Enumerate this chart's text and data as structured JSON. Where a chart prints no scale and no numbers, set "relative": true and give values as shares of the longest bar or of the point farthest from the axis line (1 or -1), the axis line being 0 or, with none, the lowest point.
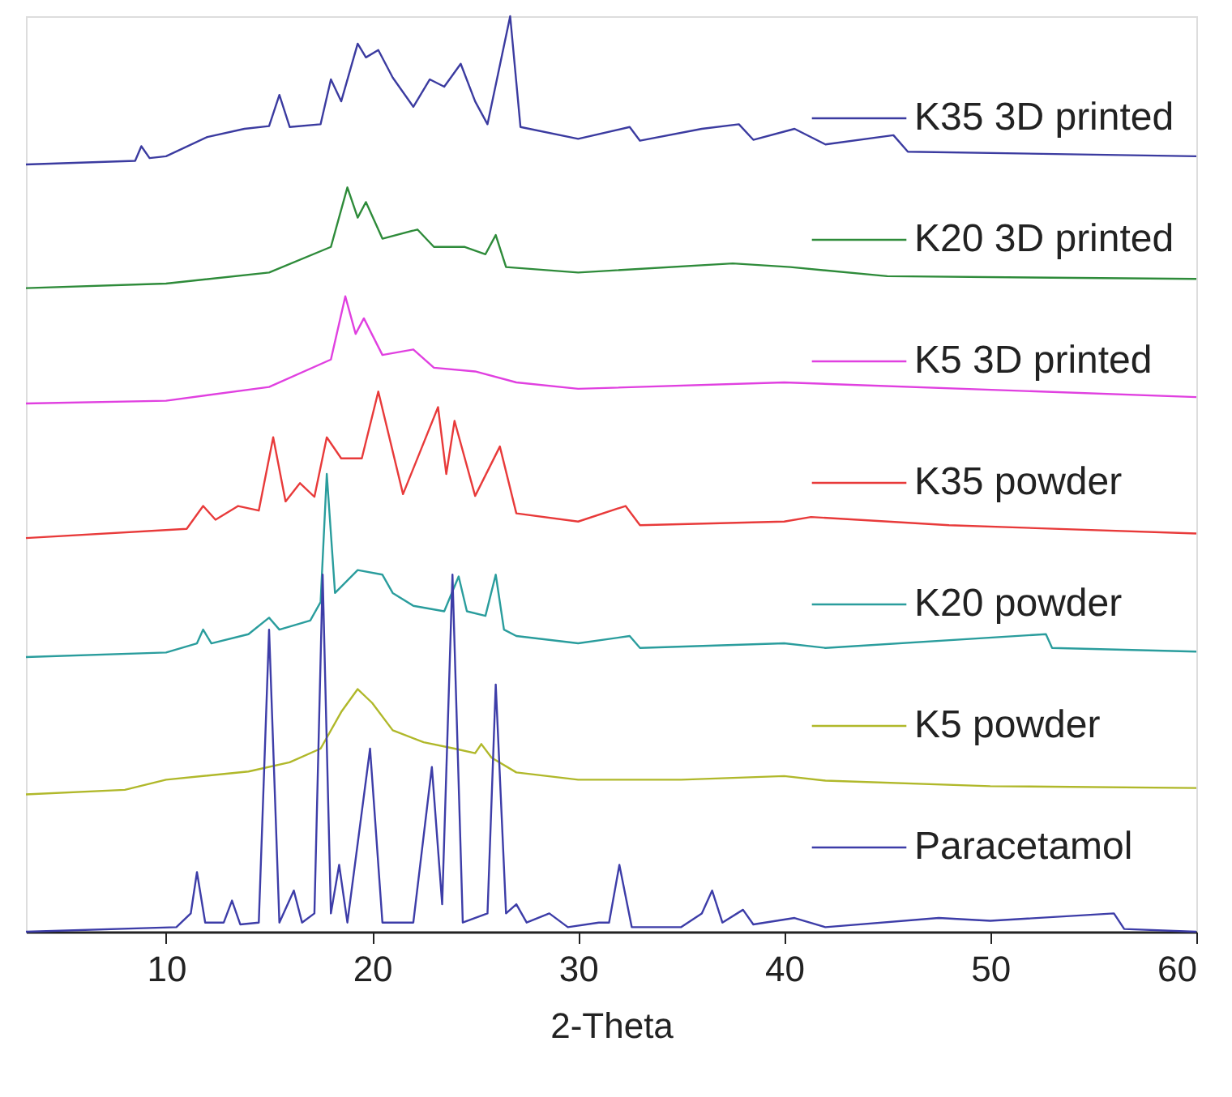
{
  "chart_data": {
    "type": "line",
    "relative": true,
    "xlabel": "2-Theta",
    "xlim": [
      3.2,
      60
    ],
    "xticks": [
      10,
      20,
      30,
      40,
      50,
      60
    ],
    "grid": false,
    "legend": "right",
    "line_style": "solid",
    "marker": "none",
    "series": [
      {
        "name": "K35 3D printed",
        "color": "#3b3ba0",
        "x": [
          3.2,
          8.5,
          8.8,
          9.2,
          10,
          12,
          13.8,
          15,
          15.5,
          16,
          17.5,
          18,
          18.5,
          19.3,
          19.7,
          20.3,
          21,
          22,
          22.8,
          23.5,
          24.3,
          25,
          25.6,
          26.7,
          27.2,
          30,
          32.5,
          33,
          36,
          37.8,
          38.5,
          40.5,
          42,
          45.3,
          46,
          60
        ],
        "values": [
          0.838,
          0.842,
          0.858,
          0.845,
          0.847,
          0.868,
          0.877,
          0.88,
          0.914,
          0.879,
          0.882,
          0.931,
          0.907,
          0.97,
          0.955,
          0.963,
          0.933,
          0.901,
          0.931,
          0.923,
          0.948,
          0.907,
          0.882,
          1.0,
          0.879,
          0.866,
          0.879,
          0.864,
          0.877,
          0.882,
          0.865,
          0.877,
          0.86,
          0.87,
          0.852,
          0.847
        ]
      },
      {
        "name": "K20 3D printed",
        "color": "#2e8b3a",
        "x": [
          3.2,
          10,
          15,
          18,
          18.8,
          19.3,
          19.7,
          20.5,
          22.2,
          23,
          24.5,
          25.5,
          26,
          26.5,
          30,
          37.5,
          40.3,
          45,
          60
        ],
        "values": [
          0.703,
          0.708,
          0.72,
          0.748,
          0.813,
          0.78,
          0.797,
          0.757,
          0.767,
          0.748,
          0.748,
          0.74,
          0.761,
          0.726,
          0.72,
          0.73,
          0.726,
          0.716,
          0.713
        ]
      },
      {
        "name": "K5 3D printed",
        "color": "#e040e0",
        "x": [
          3.2,
          10,
          15,
          18,
          18.7,
          19.2,
          19.6,
          20.5,
          22,
          23,
          25,
          27,
          30,
          40,
          60
        ],
        "values": [
          0.577,
          0.58,
          0.595,
          0.625,
          0.694,
          0.653,
          0.67,
          0.63,
          0.636,
          0.616,
          0.612,
          0.6,
          0.593,
          0.6,
          0.584
        ]
      },
      {
        "name": "K35 powder",
        "color": "#e83a3a",
        "x": [
          3.2,
          11,
          11.8,
          12.4,
          13.5,
          14.5,
          15.2,
          15.8,
          16.5,
          17.2,
          17.8,
          18.5,
          19.5,
          20.3,
          21.5,
          23.2,
          23.6,
          24,
          25,
          26.2,
          27,
          30,
          32.3,
          33,
          40,
          41.3,
          48,
          60
        ],
        "values": [
          0.43,
          0.44,
          0.465,
          0.45,
          0.465,
          0.46,
          0.54,
          0.47,
          0.49,
          0.475,
          0.54,
          0.517,
          0.517,
          0.59,
          0.478,
          0.573,
          0.5,
          0.558,
          0.476,
          0.53,
          0.457,
          0.448,
          0.465,
          0.444,
          0.448,
          0.453,
          0.444,
          0.435
        ]
      },
      {
        "name": "K20 powder",
        "color": "#2a9d9d",
        "x": [
          3.2,
          10,
          11.5,
          11.8,
          12.2,
          14,
          15,
          15.5,
          17,
          17.5,
          17.8,
          18.2,
          19.3,
          20.5,
          21,
          22,
          23.5,
          24.2,
          24.6,
          25.5,
          26,
          26.4,
          27,
          30,
          32.5,
          33,
          40,
          42,
          52.7,
          53,
          60
        ],
        "values": [
          0.3,
          0.305,
          0.315,
          0.33,
          0.315,
          0.325,
          0.343,
          0.33,
          0.34,
          0.36,
          0.5,
          0.37,
          0.395,
          0.39,
          0.37,
          0.356,
          0.35,
          0.388,
          0.35,
          0.345,
          0.39,
          0.33,
          0.323,
          0.315,
          0.323,
          0.31,
          0.315,
          0.31,
          0.325,
          0.31,
          0.306
        ]
      },
      {
        "name": "K5 powder",
        "color": "#b0b82a",
        "x": [
          3.2,
          8,
          10,
          14,
          16,
          17.5,
          18.5,
          19.3,
          20,
          21,
          22.5,
          24,
          25,
          25.3,
          25.8,
          27,
          30,
          35,
          40,
          42,
          50,
          60
        ],
        "values": [
          0.15,
          0.155,
          0.166,
          0.175,
          0.185,
          0.2,
          0.24,
          0.265,
          0.25,
          0.22,
          0.207,
          0.2,
          0.195,
          0.205,
          0.19,
          0.174,
          0.166,
          0.166,
          0.17,
          0.165,
          0.159,
          0.157
        ]
      },
      {
        "name": "Paracetamol",
        "color": "#3d3da8",
        "x": [
          3.2,
          10.5,
          11.2,
          11.5,
          11.9,
          12.8,
          13.2,
          13.6,
          14.5,
          15,
          15.5,
          16.2,
          16.6,
          17.2,
          17.6,
          18,
          18.4,
          18.8,
          19.9,
          20.5,
          22,
          22.9,
          23.4,
          23.9,
          24.4,
          25.6,
          26,
          26.5,
          27,
          27.5,
          28.6,
          29.5,
          31,
          31.5,
          32,
          32.6,
          35,
          36,
          36.5,
          37,
          38,
          38.5,
          40.5,
          42,
          47.5,
          50,
          56,
          56.5,
          60
        ],
        "values": [
          0,
          0.005,
          0.02,
          0.065,
          0.01,
          0.01,
          0.034,
          0.008,
          0.01,
          0.33,
          0.01,
          0.045,
          0.01,
          0.02,
          0.39,
          0.02,
          0.073,
          0.01,
          0.2,
          0.01,
          0.01,
          0.18,
          0.03,
          0.39,
          0.01,
          0.02,
          0.27,
          0.02,
          0.03,
          0.01,
          0.02,
          0.005,
          0.01,
          0.01,
          0.073,
          0.005,
          0.005,
          0.02,
          0.045,
          0.01,
          0.024,
          0.008,
          0.015,
          0.005,
          0.015,
          0.012,
          0.02,
          0.003,
          0
        ]
      }
    ]
  }
}
